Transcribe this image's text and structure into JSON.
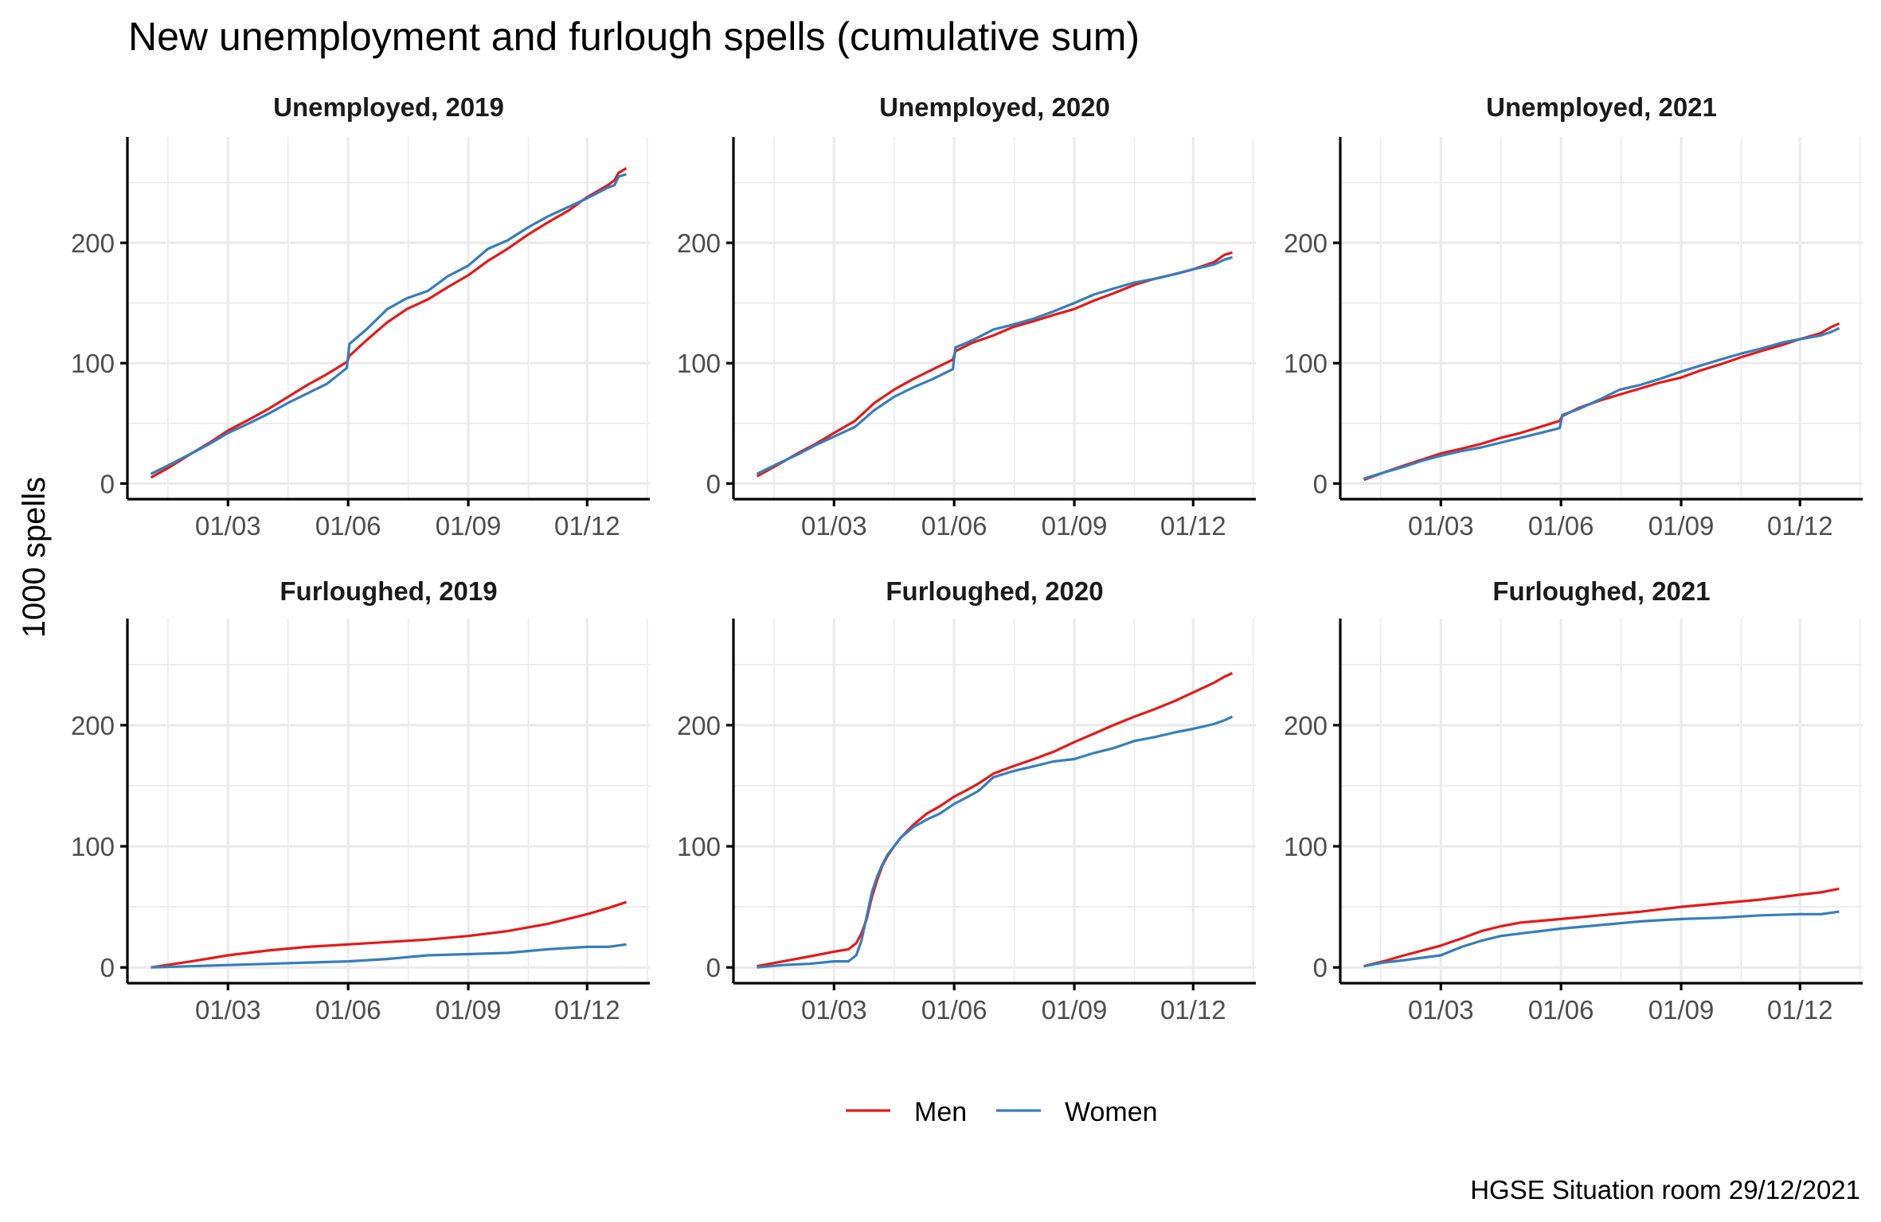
{
  "chart_data": {
    "type": "line",
    "title": "New unemployment and furlough spells (cumulative sum)",
    "ylabel": "1000 spells",
    "xlabel": "",
    "caption": "HGSE Situation room 29/12/2021",
    "legend": {
      "position": "bottom",
      "entries": [
        {
          "name": "Men",
          "color": "#e41a1c"
        },
        {
          "name": "Women",
          "color": "#377eb8"
        }
      ]
    },
    "x_axis": {
      "unit": "day of year",
      "range": [
        -18,
        382
      ],
      "ticks": [
        {
          "day": 59,
          "label": "01/03"
        },
        {
          "day": 151,
          "label": "01/06"
        },
        {
          "day": 243,
          "label": "01/09"
        },
        {
          "day": 334,
          "label": "01/12"
        }
      ],
      "minor_ticks": [
        13,
        105,
        197,
        289,
        380
      ]
    },
    "y_axis": {
      "range": [
        -13,
        288
      ],
      "ticks": [
        {
          "value": 0,
          "label": "0"
        },
        {
          "value": 100,
          "label": "100"
        },
        {
          "value": 200,
          "label": "200"
        }
      ],
      "minor_ticks": [
        50,
        150,
        250
      ]
    },
    "grid": true,
    "panels": [
      {
        "title": "Unemployed, 2019",
        "x": [
          0,
          15,
          31,
          45,
          59,
          75,
          90,
          105,
          120,
          135,
          150,
          152,
          165,
          181,
          196,
          212,
          227,
          243,
          258,
          273,
          289,
          304,
          320,
          334,
          350,
          355,
          358,
          364
        ],
        "series": [
          {
            "name": "Men",
            "values": [
              5,
              14,
              25,
              34,
              44,
              53,
              62,
              72,
              82,
              91,
              101,
              106,
              119,
              134,
              145,
              153,
              163,
              173,
              185,
              195,
              207,
              217,
              227,
              238,
              248,
              252,
              258,
              262
            ]
          },
          {
            "name": "Women",
            "values": [
              8,
              16,
              25,
              33,
              42,
              50,
              58,
              67,
              75,
              83,
              96,
              116,
              128,
              145,
              154,
              160,
              172,
              181,
              195,
              202,
              213,
              222,
              230,
              237,
              246,
              248,
              255,
              257
            ]
          }
        ]
      },
      {
        "title": "Unemployed, 2020",
        "x": [
          0,
          15,
          31,
          45,
          59,
          75,
          90,
          105,
          120,
          135,
          150,
          152,
          165,
          181,
          196,
          212,
          227,
          243,
          258,
          273,
          289,
          304,
          320,
          334,
          350,
          358,
          364
        ],
        "series": [
          {
            "name": "Men",
            "values": [
              6,
              15,
              25,
              33,
              42,
              52,
              67,
              78,
              87,
              95,
              103,
              110,
              117,
              123,
              130,
              135,
              140,
              145,
              152,
              158,
              165,
              170,
              174,
              178,
              184,
              190,
              192
            ]
          },
          {
            "name": "Women",
            "values": [
              8,
              16,
              24,
              32,
              39,
              47,
              61,
              72,
              80,
              87,
              95,
              113,
              119,
              128,
              132,
              137,
              143,
              150,
              157,
              162,
              167,
              170,
              174,
              178,
              182,
              186,
              188
            ]
          }
        ]
      },
      {
        "title": "Unemployed, 2021",
        "x": [
          0,
          15,
          31,
          45,
          59,
          75,
          90,
          105,
          120,
          135,
          150,
          152,
          165,
          181,
          196,
          212,
          227,
          243,
          258,
          273,
          289,
          304,
          320,
          334,
          350,
          358,
          364
        ],
        "series": [
          {
            "name": "Men",
            "values": [
              3,
              9,
              15,
              20,
              25,
              29,
              33,
              38,
              42,
              47,
              52,
              56,
              63,
              69,
              74,
              79,
              84,
              88,
              94,
              99,
              105,
              110,
              115,
              120,
              125,
              130,
              133
            ]
          },
          {
            "name": "Women",
            "values": [
              4,
              9,
              14,
              19,
              23,
              27,
              30,
              34,
              38,
              42,
              46,
              57,
              62,
              70,
              78,
              82,
              87,
              93,
              98,
              103,
              108,
              112,
              117,
              120,
              123,
              126,
              129
            ]
          }
        ]
      },
      {
        "title": "Furloughed, 2019",
        "x": [
          0,
          31,
          59,
          90,
          120,
          151,
          181,
          212,
          243,
          273,
          304,
          334,
          350,
          364
        ],
        "series": [
          {
            "name": "Men",
            "values": [
              0,
              5,
              10,
              14,
              17,
              19,
              21,
              23,
              26,
              30,
              36,
              44,
              49,
              54
            ]
          },
          {
            "name": "Women",
            "values": [
              0,
              1,
              2,
              3,
              4,
              5,
              7,
              10,
              11,
              12,
              15,
              17,
              17,
              19
            ]
          }
        ]
      },
      {
        "title": "Furloughed, 2020",
        "x": [
          0,
          20,
          40,
          59,
          70,
          76,
          80,
          84,
          88,
          92,
          96,
          100,
          105,
          110,
          120,
          130,
          140,
          151,
          160,
          170,
          181,
          196,
          212,
          227,
          243,
          258,
          273,
          289,
          304,
          320,
          334,
          350,
          358,
          364
        ],
        "series": [
          {
            "name": "Men",
            "values": [
              1,
              5,
              9,
              13,
              15,
              20,
              28,
              40,
              58,
              72,
              84,
              92,
              100,
              107,
              118,
              127,
              133,
              141,
              146,
              152,
              160,
              166,
              172,
              178,
              186,
              193,
              200,
              207,
              213,
              220,
              227,
              235,
              240,
              243
            ]
          },
          {
            "name": "Women",
            "values": [
              0,
              2,
              3,
              5,
              5,
              10,
              22,
              42,
              62,
              75,
              85,
              93,
              100,
              107,
              116,
              122,
              127,
              135,
              140,
              146,
              157,
              162,
              166,
              170,
              172,
              177,
              181,
              187,
              190,
              194,
              197,
              201,
              204,
              207
            ]
          }
        ]
      },
      {
        "title": "Furloughed, 2021",
        "x": [
          0,
          15,
          31,
          45,
          59,
          75,
          90,
          105,
          120,
          151,
          181,
          212,
          243,
          273,
          304,
          334,
          350,
          364
        ],
        "series": [
          {
            "name": "Men",
            "values": [
              1,
              5,
              10,
              14,
              18,
              24,
              30,
              34,
              37,
              40,
              43,
              46,
              50,
              53,
              56,
              60,
              62,
              65
            ]
          },
          {
            "name": "Women",
            "values": [
              1,
              4,
              6,
              8,
              10,
              17,
              22,
              26,
              28,
              32,
              35,
              38,
              40,
              41,
              43,
              44,
              44,
              46
            ]
          }
        ]
      }
    ]
  }
}
